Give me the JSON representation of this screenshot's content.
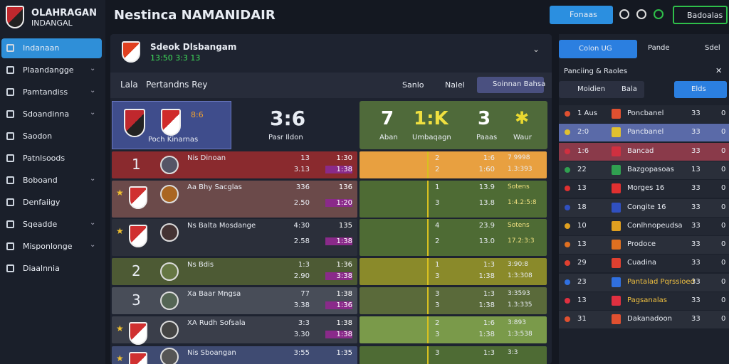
{
  "brand": {
    "name": "OLAHRAGAN",
    "sub": "INDANGAL"
  },
  "nav": [
    "Indanaan",
    "Plaandangge",
    "Pamtandiss",
    "Sdoandinna",
    "Saodon",
    "Patnlsoods",
    "Boboand",
    "Denfaiigy",
    "Sqeadde",
    "Misponlonge",
    "Diaalnnia"
  ],
  "header": {
    "title": "Nestinca NAMANIDAIR",
    "primary": "Fonaas",
    "account": "Badoalas"
  },
  "match": {
    "name": "Sdeok Dlsbangam",
    "time": "13:50 3:3 13"
  },
  "tabs": {
    "label": "Lala   Pertandns Rey",
    "links": [
      "Sanlo",
      "Nalel"
    ],
    "button": "Soinnan Bahsa"
  },
  "scoreboard": {
    "team_label": "Poch Kinarnas",
    "home": "8:6",
    "score": "3:6",
    "score_label": "Pasr Ildon",
    "stats": [
      {
        "value": "7",
        "label": "Aban"
      },
      {
        "value": "1:K",
        "label": "Umbaqagn"
      },
      {
        "value": "3",
        "label": "Paaas"
      }
    ],
    "last_label": "Waur"
  },
  "players": [
    {
      "rank": "1",
      "name": "Nis Dinoan",
      "left": [
        "13",
        "3.13"
      ],
      "mid": [
        "1:30",
        "1:38"
      ],
      "r1": [
        "2",
        "2"
      ],
      "r2": [
        "1:6",
        "1:60"
      ],
      "badge": [
        "7 9998",
        "1.3:393"
      ]
    },
    {
      "name": "Aa Bhy Sacglas",
      "left": [
        "336",
        "2.50"
      ],
      "mid": [
        "136",
        "1:20"
      ],
      "r1": [
        "1",
        "3"
      ],
      "r2": [
        "13.9",
        "13.8"
      ],
      "badge": [
        "Sotens",
        "1:4.2:5:8"
      ]
    },
    {
      "name": "Ns Balta Mosdange",
      "left": [
        "4:30",
        "2.58"
      ],
      "mid": [
        "135",
        "1:38"
      ],
      "r1": [
        "4",
        "2"
      ],
      "r2": [
        "23.9",
        "13.0"
      ],
      "badge": [
        "Sotens",
        "17.2:3:3"
      ]
    },
    {
      "rank": "2",
      "name": "Ns Bdis",
      "left": [
        "1:3",
        "2.90"
      ],
      "mid": [
        "1:36",
        "3:38"
      ],
      "r1": [
        "1",
        "3"
      ],
      "r2": [
        "1:3",
        "1:38"
      ],
      "badge": [
        "3:90:8",
        "1:3:308"
      ]
    },
    {
      "rank": "3",
      "name": "Xa Baar Mngsa",
      "left": [
        "77",
        "3.38"
      ],
      "mid": [
        "1:38",
        "1:36"
      ],
      "r1": [
        "3",
        "3"
      ],
      "r2": [
        "1:3",
        "1:38"
      ],
      "badge": [
        "3:3593",
        "1.3:335"
      ]
    },
    {
      "name": "XA Rudh Sofsala",
      "left": [
        "3:3",
        "3.30"
      ],
      "mid": [
        "1:38",
        "1:38"
      ],
      "r1": [
        "2",
        "3"
      ],
      "r2": [
        "1:6",
        "1:38"
      ],
      "badge": [
        "3:893",
        "1:3:538"
      ]
    },
    {
      "name": "Nis Sboangan",
      "left": [
        "3:55"
      ],
      "mid": [
        "1:35"
      ],
      "r1": [
        "3"
      ],
      "r2": [
        "1:3"
      ],
      "badge": [
        "3:3"
      ]
    }
  ],
  "side": {
    "tabs": [
      "Colon UG",
      "Pande",
      "Sdel"
    ],
    "heading": "Panciing & Raoles",
    "filters": [
      "Moidien",
      "Bala",
      "Elds"
    ],
    "rows": [
      {
        "rank": "1 Aus",
        "team": "Poncbanel",
        "a": "33",
        "b": "0"
      },
      {
        "rank": "2:0",
        "team": "Pancbanel",
        "a": "33",
        "b": "0"
      },
      {
        "rank": "1:6",
        "team": "Bancad",
        "a": "33",
        "b": "0"
      },
      {
        "rank": "22",
        "team": "Bazgopasoas",
        "a": "13",
        "b": "0"
      },
      {
        "rank": "13",
        "team": "Morges 16",
        "a": "33",
        "b": "0"
      },
      {
        "rank": "18",
        "team": "Congite 16",
        "a": "33",
        "b": "0"
      },
      {
        "rank": "10",
        "team": "Conlhnopeudsa",
        "a": "33",
        "b": "0"
      },
      {
        "rank": "13",
        "team": "Prodoce",
        "a": "33",
        "b": "0"
      },
      {
        "rank": "29",
        "team": "Cuadina",
        "a": "33",
        "b": "0"
      },
      {
        "rank": "23",
        "team": "Pantalad Pqrssioed",
        "a": "33",
        "b": "0"
      },
      {
        "rank": "13",
        "team": "Pagsanalas",
        "a": "33",
        "b": "0"
      },
      {
        "rank": "31",
        "team": "Dakanadoon",
        "a": "33",
        "b": "0"
      }
    ]
  }
}
